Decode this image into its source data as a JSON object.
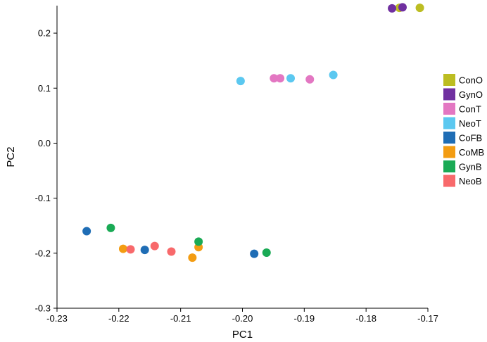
{
  "chart_data": {
    "type": "scatter",
    "title": "",
    "xlabel": "PC1",
    "ylabel": "PC2",
    "xlim": [
      -0.23,
      -0.17
    ],
    "ylim": [
      -0.3,
      0.25
    ],
    "xticks": [
      -0.23,
      -0.22,
      -0.21,
      -0.2,
      -0.19,
      -0.18,
      -0.17
    ],
    "xtick_labels": [
      "-0.23",
      "-0.22",
      "-0.21",
      "-0.20",
      "-0.19",
      "-0.18",
      "-0.17"
    ],
    "yticks": [
      -0.3,
      -0.2,
      -0.1,
      0.0,
      0.1,
      0.2
    ],
    "ytick_labels": [
      "-0.3",
      "-0.2",
      "-0.1",
      "0.0",
      "0.1",
      "0.2"
    ],
    "grid": false,
    "legend_position": "right",
    "series": [
      {
        "name": "ConO",
        "color": "#bcbd22",
        "points": [
          [
            -0.1746,
            0.246
          ],
          [
            -0.1713,
            0.246
          ]
        ]
      },
      {
        "name": "GynO",
        "color": "#7030a0",
        "points": [
          [
            -0.1758,
            0.245
          ],
          [
            -0.1741,
            0.247
          ]
        ]
      },
      {
        "name": "ConT",
        "color": "#e377c2",
        "points": [
          [
            -0.1949,
            0.118
          ],
          [
            -0.1939,
            0.118
          ],
          [
            -0.1891,
            0.116
          ]
        ]
      },
      {
        "name": "NeoT",
        "color": "#5bc8f0",
        "points": [
          [
            -0.2003,
            0.113
          ],
          [
            -0.1922,
            0.118
          ],
          [
            -0.1853,
            0.124
          ]
        ]
      },
      {
        "name": "CoFB",
        "color": "#1f6db5",
        "points": [
          [
            -0.2252,
            -0.16
          ],
          [
            -0.2158,
            -0.194
          ],
          [
            -0.1981,
            -0.201
          ]
        ]
      },
      {
        "name": "CoMB",
        "color": "#f39c12",
        "points": [
          [
            -0.2193,
            -0.192
          ],
          [
            -0.2081,
            -0.208
          ],
          [
            -0.2071,
            -0.189
          ]
        ]
      },
      {
        "name": "GynB",
        "color": "#1aaa55",
        "points": [
          [
            -0.2213,
            -0.154
          ],
          [
            -0.2071,
            -0.179
          ],
          [
            -0.1961,
            -0.199
          ]
        ]
      },
      {
        "name": "NeoB",
        "color": "#f8696b",
        "points": [
          [
            -0.2181,
            -0.193
          ],
          [
            -0.2142,
            -0.187
          ],
          [
            -0.2115,
            -0.197
          ]
        ]
      }
    ]
  }
}
